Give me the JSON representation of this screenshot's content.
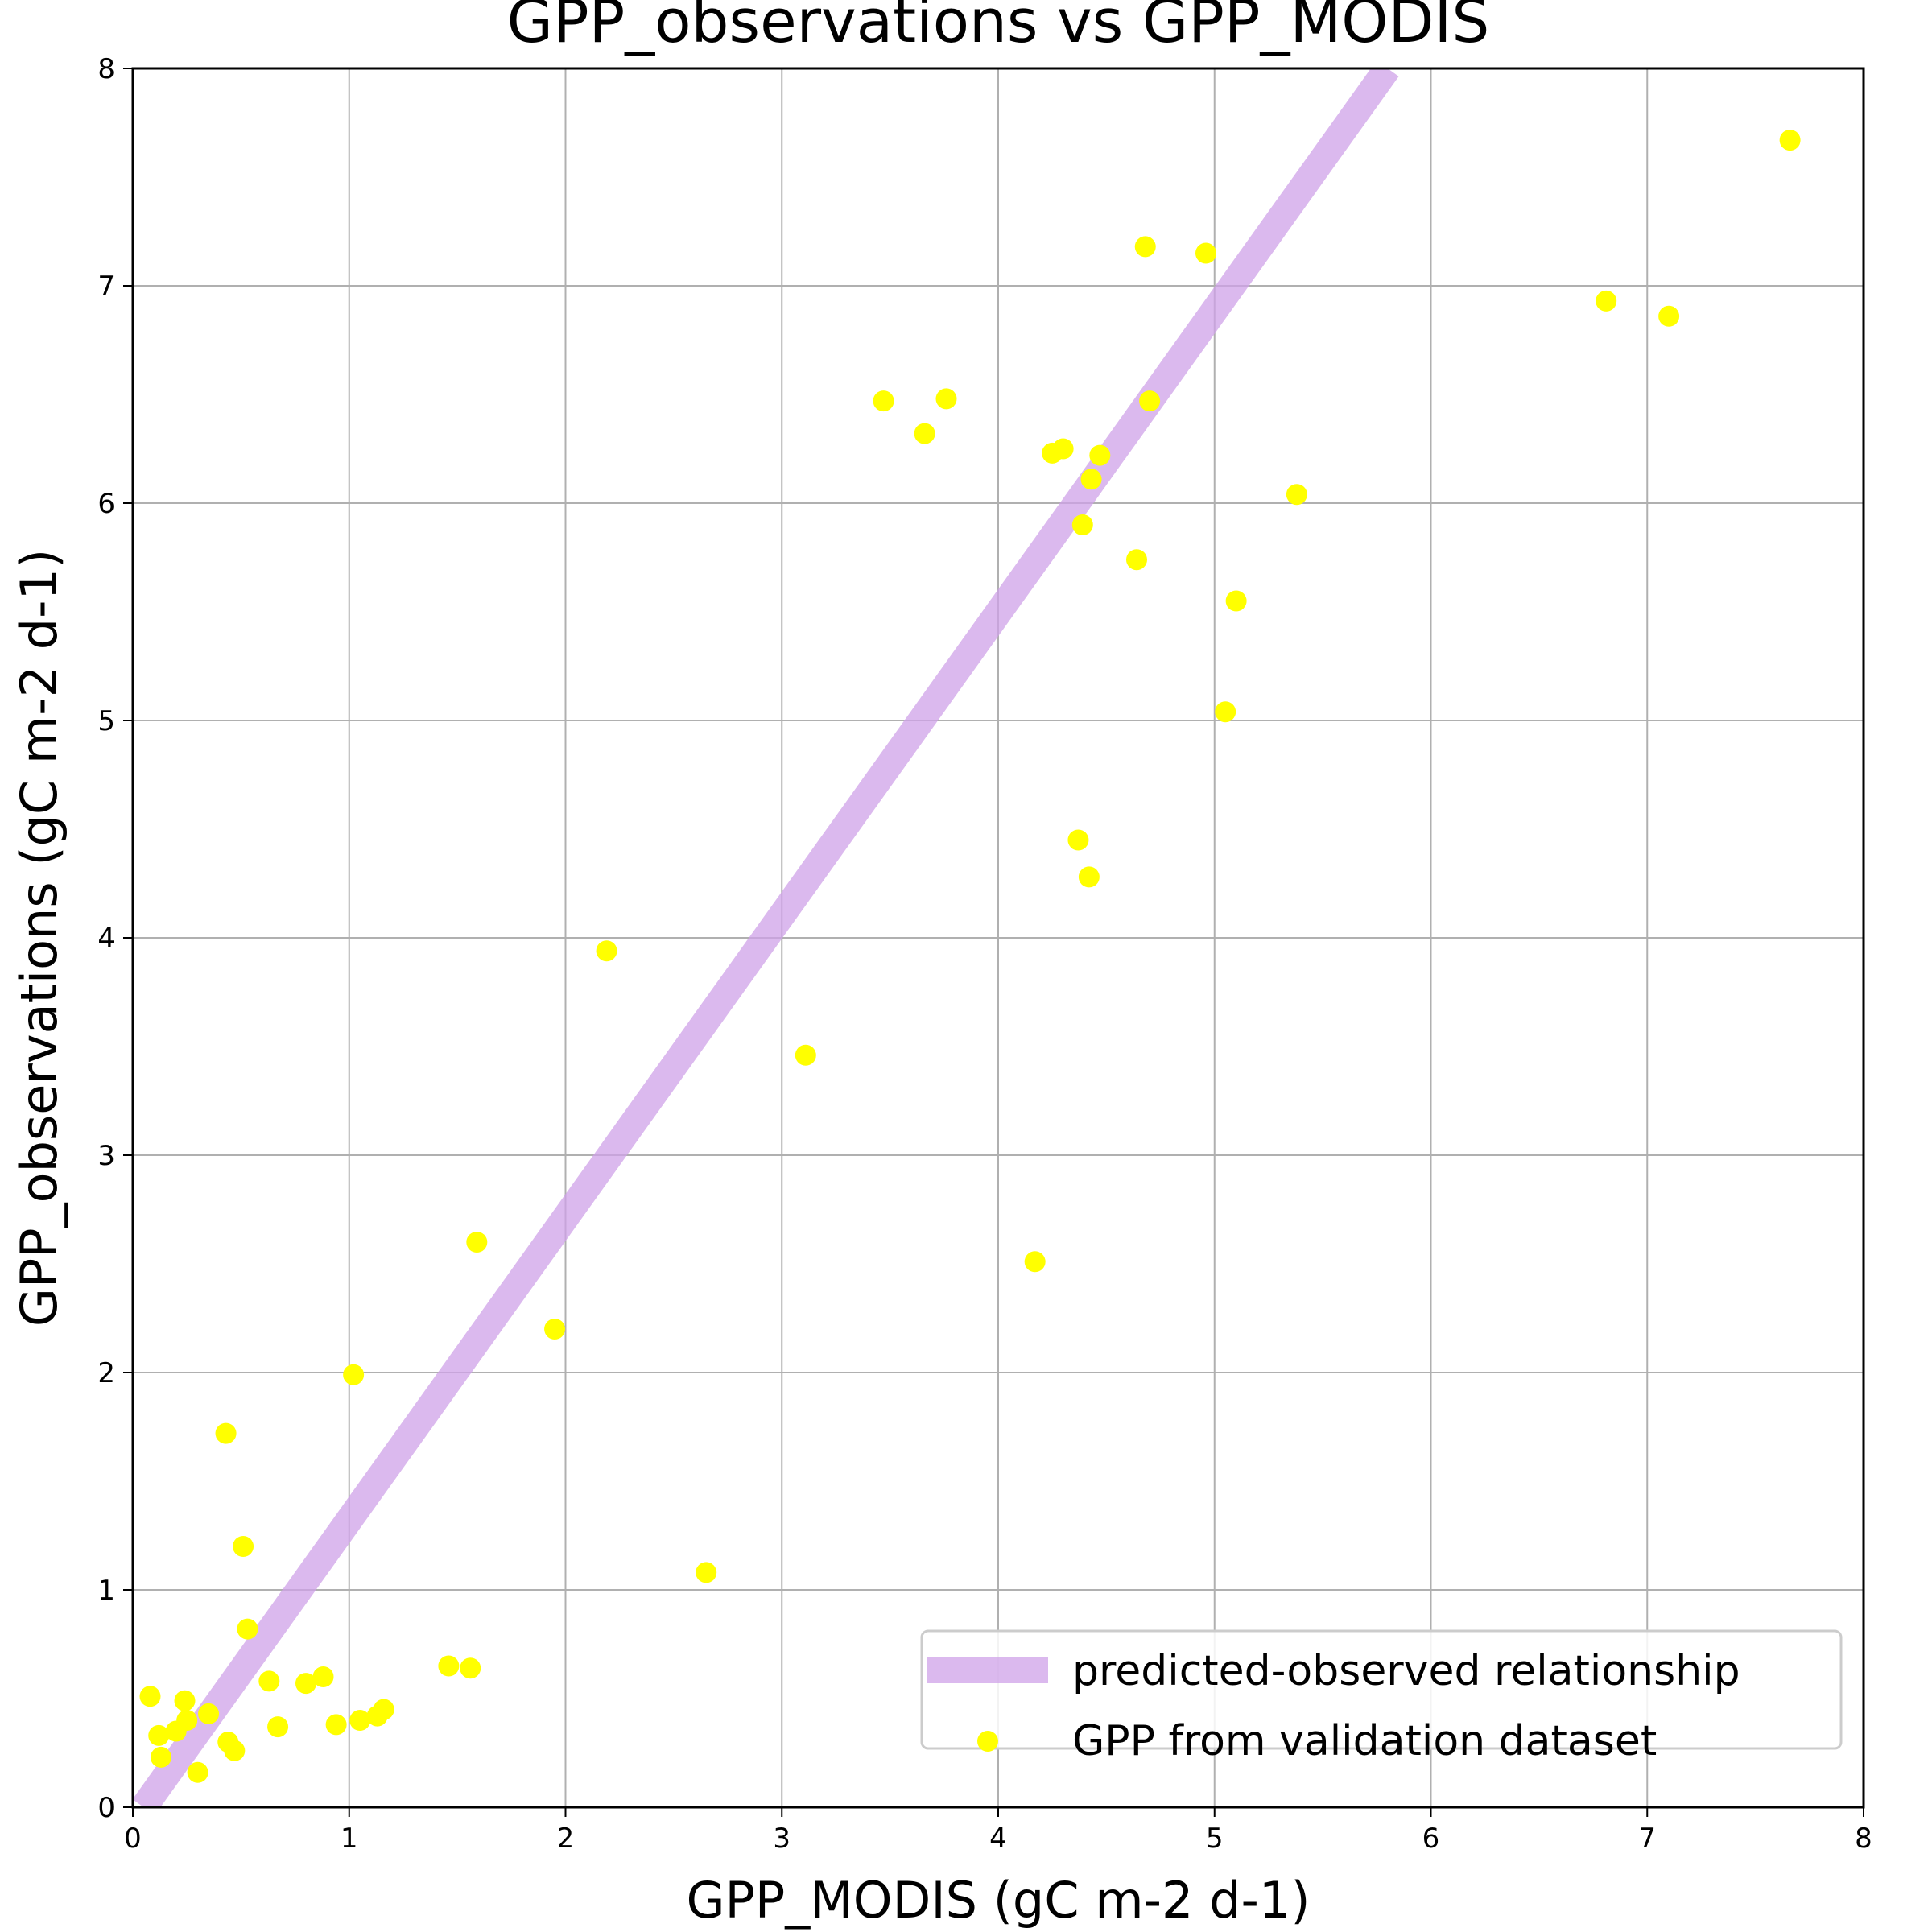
{
  "chart_data": {
    "type": "scatter",
    "title": "GPP_observations vs GPP_MODIS",
    "xlabel": "GPP_MODIS (gC m-2 d-1)",
    "ylabel": "GPP_observations (gC m-2 d-1)",
    "xlim": [
      0,
      8
    ],
    "ylim": [
      0,
      8
    ],
    "xticks": [
      "0",
      "1",
      "2",
      "3",
      "4",
      "5",
      "6",
      "7",
      "8"
    ],
    "yticks": [
      "0",
      "1",
      "2",
      "3",
      "4",
      "5",
      "6",
      "7",
      "8"
    ],
    "grid": true,
    "legend_position": "bottom-right",
    "colors": {
      "points": "#ffff00",
      "line": "#cfa2e8",
      "grid": "#b0b0b0"
    },
    "line": {
      "name": "predicted-observed relationship",
      "x": [
        0.05,
        5.8
      ],
      "y": [
        0.0,
        8.0
      ]
    },
    "series": [
      {
        "name": "GPP from validation dataset",
        "points": [
          [
            0.08,
            0.51
          ],
          [
            0.12,
            0.33
          ],
          [
            0.13,
            0.23
          ],
          [
            0.2,
            0.35
          ],
          [
            0.24,
            0.49
          ],
          [
            0.25,
            0.4
          ],
          [
            0.3,
            0.16
          ],
          [
            0.35,
            0.43
          ],
          [
            0.43,
            1.72
          ],
          [
            0.44,
            0.3
          ],
          [
            0.47,
            0.26
          ],
          [
            0.51,
            1.2
          ],
          [
            0.53,
            0.82
          ],
          [
            0.63,
            0.58
          ],
          [
            0.67,
            0.37
          ],
          [
            0.8,
            0.57
          ],
          [
            0.88,
            0.6
          ],
          [
            0.94,
            0.38
          ],
          [
            1.02,
            1.99
          ],
          [
            1.05,
            0.4
          ],
          [
            1.13,
            0.42
          ],
          [
            1.16,
            0.45
          ],
          [
            1.46,
            0.65
          ],
          [
            1.56,
            0.64
          ],
          [
            1.59,
            2.6
          ],
          [
            1.95,
            2.2
          ],
          [
            2.19,
            3.94
          ],
          [
            2.65,
            1.08
          ],
          [
            3.11,
            3.46
          ],
          [
            3.47,
            6.47
          ],
          [
            3.66,
            6.32
          ],
          [
            3.76,
            6.48
          ],
          [
            4.17,
            2.51
          ],
          [
            4.25,
            6.23
          ],
          [
            4.3,
            6.25
          ],
          [
            4.37,
            4.45
          ],
          [
            4.39,
            5.9
          ],
          [
            4.42,
            4.28
          ],
          [
            4.43,
            6.11
          ],
          [
            4.47,
            6.22
          ],
          [
            4.64,
            5.74
          ],
          [
            4.68,
            7.18
          ],
          [
            4.7,
            6.47
          ],
          [
            4.96,
            7.15
          ],
          [
            5.05,
            5.04
          ],
          [
            5.1,
            5.55
          ],
          [
            5.38,
            6.04
          ],
          [
            6.81,
            6.93
          ],
          [
            7.1,
            6.86
          ],
          [
            7.66,
            7.67
          ]
        ]
      }
    ]
  }
}
